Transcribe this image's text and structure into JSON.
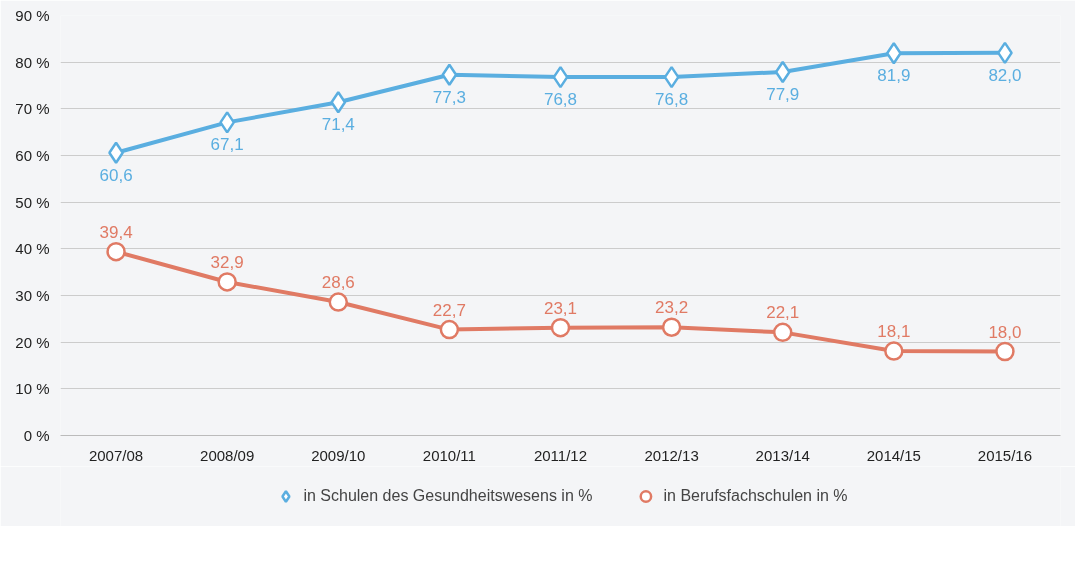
{
  "chart_data": {
    "type": "line",
    "categories": [
      "2007/08",
      "2008/09",
      "2009/10",
      "2010/11",
      "2011/12",
      "2012/13",
      "2013/14",
      "2014/15",
      "2015/16"
    ],
    "series": [
      {
        "name": "in Schulen des Gesundheitswesens in %",
        "color": "#5aaee0",
        "marker": "diamond",
        "values": [
          60.6,
          67.1,
          71.4,
          77.3,
          76.8,
          76.8,
          77.9,
          81.9,
          82.0
        ],
        "value_labels": [
          "60,6",
          "67,1",
          "71,4",
          "77,3",
          "76,8",
          "76,8",
          "77,9",
          "81,9",
          "82,0"
        ]
      },
      {
        "name": "in Berufsfachschulen in %",
        "color": "#e07a64",
        "marker": "circle",
        "values": [
          39.4,
          32.9,
          28.6,
          22.7,
          23.1,
          23.2,
          22.1,
          18.1,
          18.0
        ],
        "value_labels": [
          "39,4",
          "32,9",
          "28,6",
          "22,7",
          "23,1",
          "23,2",
          "22,1",
          "18,1",
          "18,0"
        ]
      }
    ],
    "ylim": [
      0,
      90
    ],
    "yticks": [
      {
        "value": 0,
        "label": "0 %"
      },
      {
        "value": 10,
        "label": "10 %"
      },
      {
        "value": 20,
        "label": "20 %"
      },
      {
        "value": 30,
        "label": "30 %"
      },
      {
        "value": 40,
        "label": "40 %"
      },
      {
        "value": 50,
        "label": "50 %"
      },
      {
        "value": 60,
        "label": "60 %"
      },
      {
        "value": 70,
        "label": "70 %"
      },
      {
        "value": 80,
        "label": "80 %"
      },
      {
        "value": 90,
        "label": "90 %"
      }
    ],
    "grid": "y",
    "legend": "bottom"
  }
}
